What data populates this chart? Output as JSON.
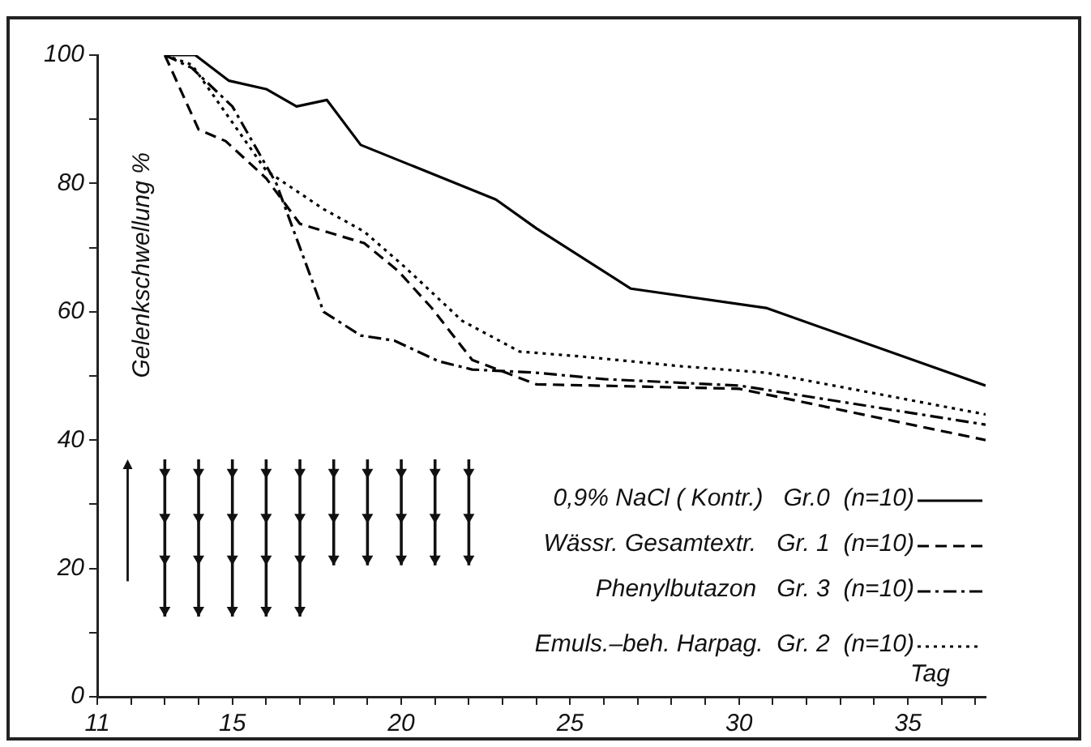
{
  "chart_data": {
    "type": "line",
    "xlabel": "Tag",
    "ylabel": "Gelenkschwellung %",
    "xlim": [
      11,
      37.3
    ],
    "ylim": [
      0,
      100
    ],
    "xticks": [
      11,
      {
        "value": 12,
        "label": null
      },
      {
        "value": 13,
        "label": null
      },
      {
        "value": 14,
        "label": null
      },
      15,
      {
        "value": 16,
        "label": null
      },
      {
        "value": 17,
        "label": null
      },
      {
        "value": 18,
        "label": null
      },
      {
        "value": 19,
        "label": null
      },
      20,
      {
        "value": 21,
        "label": null
      },
      {
        "value": 22,
        "label": null
      },
      {
        "value": 23,
        "label": null
      },
      {
        "value": 24,
        "label": null
      },
      25,
      {
        "value": 26,
        "label": null
      },
      {
        "value": 27,
        "label": null
      },
      {
        "value": 28,
        "label": null
      },
      {
        "value": 29,
        "label": null
      },
      30,
      {
        "value": 31,
        "label": null
      },
      {
        "value": 32,
        "label": null
      },
      {
        "value": 33,
        "label": null
      },
      {
        "value": 34,
        "label": null
      },
      35,
      {
        "value": 36,
        "label": null
      },
      {
        "value": 37,
        "label": null
      }
    ],
    "yticks": [
      0,
      {
        "value": 10,
        "label": null
      },
      20,
      {
        "value": 30,
        "label": null
      },
      40,
      {
        "value": 50,
        "label": null
      },
      60,
      {
        "value": 70,
        "label": null
      },
      80,
      {
        "value": 90,
        "label": null
      },
      100
    ],
    "grid": false,
    "legend": "bottom right",
    "marker": "none",
    "series": [
      {
        "name": "0,9% NaCl ( Kontr.)   Gr.0  (n=10)",
        "color": "#000000",
        "line_style": "solid",
        "x": [
          13,
          13.9,
          14.9,
          16,
          16.9,
          17.8,
          18.8,
          22.8,
          24,
          26.8,
          30.8,
          37.3
        ],
        "values": [
          100,
          100,
          96,
          94.7,
          92,
          93,
          86,
          77.5,
          73,
          63.6,
          60.6,
          48.5
        ]
      },
      {
        "name": "Wässr. Gesamtextr.   Gr. 1  (n=10)",
        "color": "#000000",
        "line_style": "dashed",
        "x": [
          13,
          14,
          14.8,
          16,
          17,
          18.9,
          19.9,
          20.9,
          22.1,
          24,
          30,
          37.3
        ],
        "values": [
          100,
          88.4,
          86.6,
          80.8,
          73.7,
          70.7,
          66.4,
          60.6,
          52.5,
          48.7,
          48,
          40
        ]
      },
      {
        "name": "Phenylbutazon   Gr. 3  (n=10)",
        "color": "#000000",
        "line_style": "dashdot",
        "x": [
          13,
          13.8,
          15,
          16.3,
          17.7,
          18.8,
          19.8,
          21.1,
          22.1,
          24,
          26,
          30,
          37.3
        ],
        "values": [
          100,
          98,
          92,
          80,
          60,
          56.3,
          55.5,
          52.3,
          51,
          50.5,
          49.5,
          48.5,
          42.4
        ]
      },
      {
        "name": "Emuls.–beh. Harpag.  Gr. 2  (n=10)",
        "color": "#000000",
        "line_style": "dotted",
        "x": [
          13,
          13.8,
          14.8,
          16,
          17.7,
          18.9,
          20.1,
          21.8,
          23.5,
          25.4,
          28.3,
          30.8,
          37.3
        ],
        "values": [
          100,
          98.5,
          91,
          82,
          76,
          72.5,
          67,
          58.6,
          53.8,
          53,
          51.5,
          50.5,
          44
        ]
      }
    ]
  }
}
